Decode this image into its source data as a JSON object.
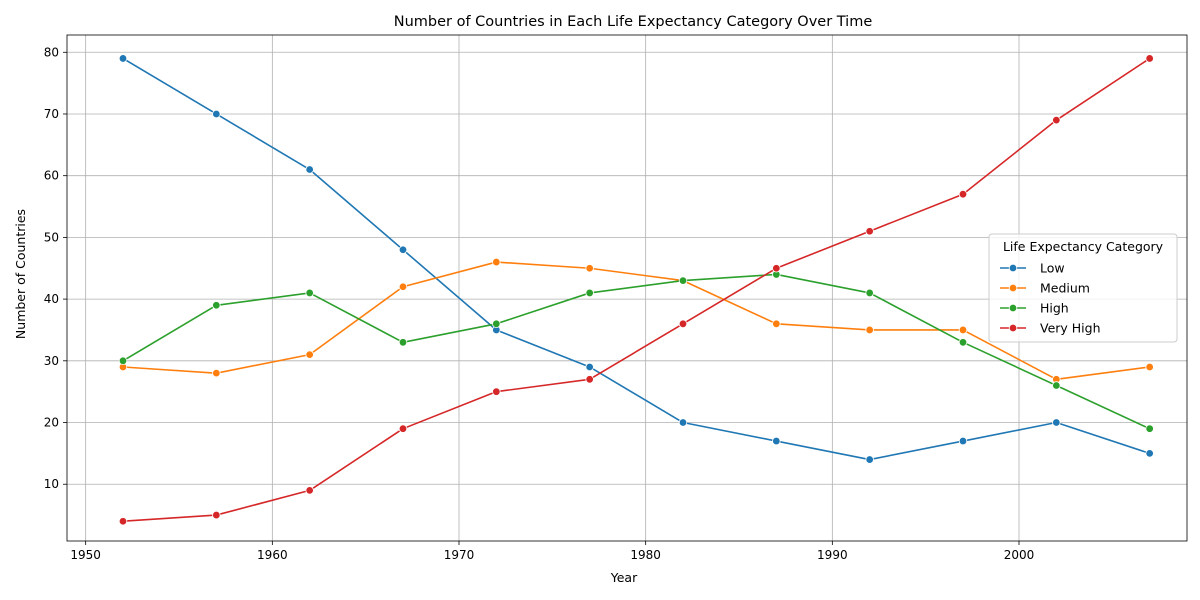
{
  "chart_data": {
    "type": "line",
    "title": "Number of Countries in Each Life Expectancy Category Over Time",
    "xlabel": "Year",
    "ylabel": "Number of Countries",
    "x": [
      1952,
      1957,
      1962,
      1967,
      1972,
      1977,
      1982,
      1987,
      1992,
      1997,
      2002,
      2007
    ],
    "xlim": [
      1949,
      2009
    ],
    "ylim": [
      0.8,
      82.8
    ],
    "xticks": [
      1950,
      1960,
      1970,
      1980,
      1990,
      2000
    ],
    "yticks": [
      10,
      20,
      30,
      40,
      50,
      60,
      70,
      80
    ],
    "grid": true,
    "legend": {
      "title": "Life Expectancy Category",
      "placement": "center-right"
    },
    "series": [
      {
        "name": "Low",
        "color": "#1f77b4",
        "values": [
          79,
          70,
          61,
          48,
          35,
          29,
          20,
          17,
          14,
          17,
          20,
          15
        ]
      },
      {
        "name": "Medium",
        "color": "#ff7f0e",
        "values": [
          29,
          28,
          31,
          42,
          46,
          45,
          43,
          36,
          35,
          35,
          27,
          29
        ]
      },
      {
        "name": "High",
        "color": "#2ca02c",
        "values": [
          30,
          39,
          41,
          33,
          36,
          41,
          43,
          44,
          41,
          33,
          26,
          19
        ]
      },
      {
        "name": "Very High",
        "color": "#d62728",
        "values": [
          4,
          5,
          9,
          19,
          25,
          27,
          36,
          45,
          51,
          57,
          69,
          79
        ]
      }
    ]
  }
}
